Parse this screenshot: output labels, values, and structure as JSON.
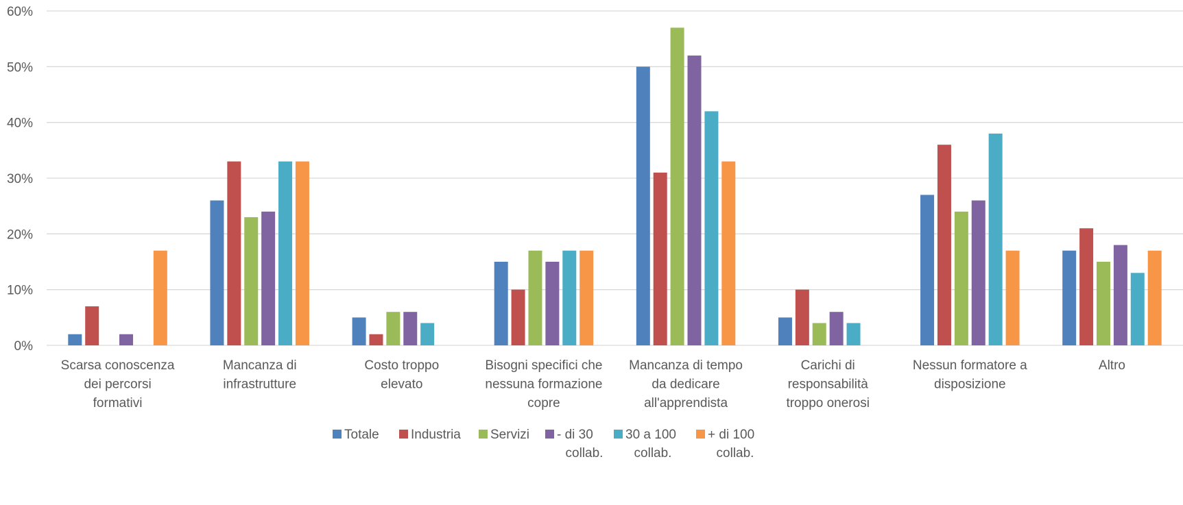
{
  "chart_data": {
    "type": "bar",
    "ylim": [
      0,
      60
    ],
    "yticks": [
      "0%",
      "10%",
      "20%",
      "30%",
      "40%",
      "50%",
      "60%"
    ],
    "grid": true,
    "legend_position": "bottom",
    "categories": [
      [
        "Scarsa conoscenza",
        "dei percorsi",
        "formativi"
      ],
      [
        "Mancanza di",
        "infrastrutture"
      ],
      [
        "Costo troppo",
        "elevato"
      ],
      [
        "Bisogni specifici che",
        "nessuna formazione",
        "copre"
      ],
      [
        "Mancanza di tempo",
        "da dedicare",
        "all'apprendista"
      ],
      [
        "Carichi di",
        "responsabilità",
        "troppo onerosi"
      ],
      [
        "Nessun formatore a",
        "disposizione"
      ],
      [
        "Altro"
      ]
    ],
    "series": [
      {
        "name": [
          "Totale"
        ],
        "color": "#4f81bd",
        "values": [
          2,
          26,
          5,
          15,
          50,
          5,
          27,
          17
        ]
      },
      {
        "name": [
          "Industria"
        ],
        "color": "#c0504d",
        "values": [
          7,
          33,
          2,
          10,
          31,
          10,
          36,
          21
        ]
      },
      {
        "name": [
          "Servizi"
        ],
        "color": "#9bbb59",
        "values": [
          0,
          23,
          6,
          17,
          57,
          4,
          24,
          15
        ]
      },
      {
        "name": [
          "- di 30",
          "collab."
        ],
        "color": "#8064a2",
        "values": [
          2,
          24,
          6,
          15,
          52,
          6,
          26,
          18
        ]
      },
      {
        "name": [
          "30 a 100",
          "collab."
        ],
        "color": "#4bacc6",
        "values": [
          0,
          33,
          4,
          17,
          42,
          4,
          38,
          13
        ]
      },
      {
        "name": [
          "+ di 100",
          "collab."
        ],
        "color": "#f79646",
        "values": [
          17,
          33,
          0,
          17,
          33,
          0,
          17,
          17
        ]
      }
    ]
  }
}
